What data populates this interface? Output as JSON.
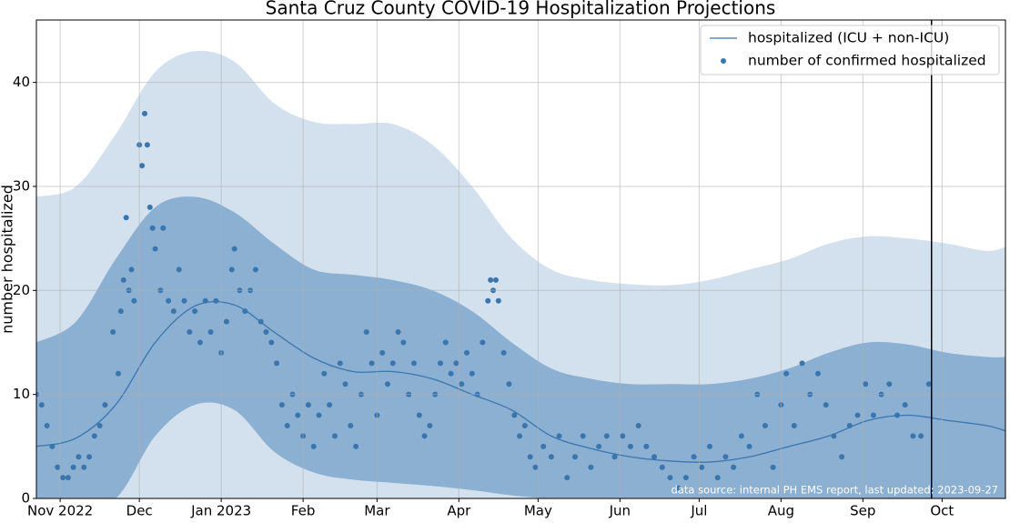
{
  "chart_data": {
    "type": "line",
    "title": "Santa Cruz County COVID-19 Hospitalization Projections",
    "ylabel": "number hospitalized",
    "annotation": "data source: internal PH EMS report, last updated: 2023-09-27",
    "vline": "2023-09-27",
    "xlim": [
      "2022-10-23",
      "2023-10-25"
    ],
    "xticks": [
      {
        "value": "2022-11-01",
        "label": "Nov 2022"
      },
      {
        "value": "2022-12-01",
        "label": "Dec"
      },
      {
        "value": "2023-01-01",
        "label": "Jan 2023"
      },
      {
        "value": "2023-02-01",
        "label": "Feb"
      },
      {
        "value": "2023-03-01",
        "label": "Mar"
      },
      {
        "value": "2023-04-01",
        "label": "Apr"
      },
      {
        "value": "2023-05-01",
        "label": "May"
      },
      {
        "value": "2023-06-01",
        "label": "Jun"
      },
      {
        "value": "2023-07-01",
        "label": "Jul"
      },
      {
        "value": "2023-08-01",
        "label": "Aug"
      },
      {
        "value": "2023-09-01",
        "label": "Sep"
      },
      {
        "value": "2023-10-01",
        "label": "Oct"
      }
    ],
    "ylim": [
      0,
      46
    ],
    "yticks": [
      0,
      10,
      20,
      30,
      40
    ],
    "grid": true,
    "legend": "upper right",
    "bands": [
      {
        "color": "#d3e0ed",
        "x": [
          "2022-10-23",
          "2022-11-07",
          "2022-11-22",
          "2022-12-07",
          "2022-12-22",
          "2023-01-06",
          "2023-01-21",
          "2023-02-05",
          "2023-02-20",
          "2023-03-07",
          "2023-03-22",
          "2023-04-06",
          "2023-04-21",
          "2023-05-06",
          "2023-05-21",
          "2023-06-05",
          "2023-06-20",
          "2023-07-05",
          "2023-07-20",
          "2023-08-04",
          "2023-08-19",
          "2023-09-03",
          "2023-09-18",
          "2023-10-03",
          "2023-10-18",
          "2023-10-25"
        ],
        "upper": [
          29,
          30,
          35,
          41,
          43,
          42,
          38,
          36.2,
          36,
          36,
          34,
          30,
          25,
          22,
          21,
          20.6,
          20.5,
          21,
          22,
          23,
          24.5,
          25.2,
          25,
          24.5,
          23.8,
          24.2
        ]
      },
      {
        "color": "#8bb0d2",
        "x": [
          "2022-10-23",
          "2022-11-07",
          "2022-11-22",
          "2022-12-07",
          "2022-12-22",
          "2023-01-06",
          "2023-01-21",
          "2023-02-05",
          "2023-02-20",
          "2023-03-07",
          "2023-03-22",
          "2023-04-06",
          "2023-04-21",
          "2023-05-06",
          "2023-05-21",
          "2023-06-05",
          "2023-06-20",
          "2023-07-05",
          "2023-07-20",
          "2023-08-04",
          "2023-08-19",
          "2023-09-03",
          "2023-09-18",
          "2023-10-03",
          "2023-10-18",
          "2023-10-25"
        ],
        "upper": [
          15,
          17,
          23,
          28,
          29,
          27.5,
          24.5,
          22,
          21.5,
          21,
          20,
          18,
          15,
          12.5,
          11.5,
          11,
          11,
          11,
          11.5,
          12.5,
          14,
          15,
          14.8,
          14,
          13.6,
          13.6
        ],
        "lower": [
          0,
          0,
          0,
          6,
          9,
          8.5,
          4.5,
          2.5,
          1.8,
          1.5,
          1.2,
          0.8,
          0.3,
          0,
          0,
          0,
          0,
          0,
          0,
          0,
          0,
          0,
          0,
          0,
          0,
          0
        ]
      }
    ],
    "series": [
      {
        "name": "hospitalized (ICU + non-ICU)",
        "kind": "line",
        "color": "#3a75ae",
        "x": [
          "2022-10-23",
          "2022-11-07",
          "2022-11-22",
          "2022-12-07",
          "2022-12-22",
          "2023-01-06",
          "2023-01-21",
          "2023-02-05",
          "2023-02-20",
          "2023-03-07",
          "2023-03-22",
          "2023-04-06",
          "2023-04-21",
          "2023-05-06",
          "2023-05-21",
          "2023-06-05",
          "2023-06-20",
          "2023-07-05",
          "2023-07-20",
          "2023-08-04",
          "2023-08-19",
          "2023-09-03",
          "2023-09-18",
          "2023-10-03",
          "2023-10-18",
          "2023-10-25"
        ],
        "values": [
          5,
          5.8,
          9,
          15,
          18.5,
          18.6,
          16,
          13.5,
          12.2,
          12.2,
          11.5,
          10,
          8.5,
          6,
          4.8,
          4,
          3.6,
          3.5,
          4,
          5,
          6,
          7.5,
          8,
          7.5,
          7,
          6.5
        ]
      },
      {
        "name": "number of confirmed hospitalized",
        "kind": "scatter",
        "color": "#3a75ae",
        "x": [
          "2022-10-23",
          "2022-10-25",
          "2022-10-27",
          "2022-10-29",
          "2022-10-31",
          "2022-11-02",
          "2022-11-04",
          "2022-11-06",
          "2022-11-08",
          "2022-11-10",
          "2022-11-12",
          "2022-11-14",
          "2022-11-16",
          "2022-11-18",
          "2022-11-21",
          "2022-11-23",
          "2022-11-24",
          "2022-11-25",
          "2022-11-26",
          "2022-11-27",
          "2022-11-28",
          "2022-11-29",
          "2022-12-01",
          "2022-12-02",
          "2022-12-03",
          "2022-12-04",
          "2022-12-05",
          "2022-12-06",
          "2022-12-07",
          "2022-12-09",
          "2022-12-10",
          "2022-12-12",
          "2022-12-14",
          "2022-12-16",
          "2022-12-18",
          "2022-12-20",
          "2022-12-22",
          "2022-12-24",
          "2022-12-26",
          "2022-12-28",
          "2022-12-30",
          "2023-01-01",
          "2023-01-03",
          "2023-01-05",
          "2023-01-06",
          "2023-01-08",
          "2023-01-10",
          "2023-01-12",
          "2023-01-14",
          "2023-01-16",
          "2023-01-18",
          "2023-01-20",
          "2023-01-22",
          "2023-01-24",
          "2023-01-26",
          "2023-01-28",
          "2023-01-30",
          "2023-02-01",
          "2023-02-03",
          "2023-02-05",
          "2023-02-07",
          "2023-02-09",
          "2023-02-11",
          "2023-02-13",
          "2023-02-15",
          "2023-02-17",
          "2023-02-19",
          "2023-02-21",
          "2023-02-23",
          "2023-02-25",
          "2023-02-27",
          "2023-03-01",
          "2023-03-03",
          "2023-03-05",
          "2023-03-07",
          "2023-03-09",
          "2023-03-11",
          "2023-03-13",
          "2023-03-15",
          "2023-03-17",
          "2023-03-19",
          "2023-03-21",
          "2023-03-23",
          "2023-03-25",
          "2023-03-27",
          "2023-03-29",
          "2023-03-31",
          "2023-04-02",
          "2023-04-04",
          "2023-04-06",
          "2023-04-08",
          "2023-04-10",
          "2023-04-12",
          "2023-04-13",
          "2023-04-14",
          "2023-04-15",
          "2023-04-16",
          "2023-04-18",
          "2023-04-20",
          "2023-04-22",
          "2023-04-24",
          "2023-04-26",
          "2023-04-28",
          "2023-04-30",
          "2023-05-03",
          "2023-05-06",
          "2023-05-09",
          "2023-05-12",
          "2023-05-15",
          "2023-05-18",
          "2023-05-21",
          "2023-05-24",
          "2023-05-27",
          "2023-05-30",
          "2023-06-02",
          "2023-06-05",
          "2023-06-08",
          "2023-06-11",
          "2023-06-14",
          "2023-06-17",
          "2023-06-20",
          "2023-06-23",
          "2023-06-26",
          "2023-06-29",
          "2023-07-02",
          "2023-07-05",
          "2023-07-08",
          "2023-07-11",
          "2023-07-14",
          "2023-07-17",
          "2023-07-20",
          "2023-07-23",
          "2023-07-26",
          "2023-07-29",
          "2023-08-01",
          "2023-08-03",
          "2023-08-06",
          "2023-08-09",
          "2023-08-12",
          "2023-08-15",
          "2023-08-18",
          "2023-08-21",
          "2023-08-24",
          "2023-08-27",
          "2023-08-30",
          "2023-09-02",
          "2023-09-05",
          "2023-09-08",
          "2023-09-11",
          "2023-09-14",
          "2023-09-17",
          "2023-09-20",
          "2023-09-23",
          "2023-09-26"
        ],
        "values": [
          10,
          9,
          7,
          5,
          3,
          2,
          2,
          3,
          4,
          3,
          4,
          6,
          7,
          9,
          16,
          12,
          18,
          21,
          27,
          20,
          22,
          19,
          34,
          32,
          37,
          34,
          28,
          26,
          24,
          20,
          26,
          19,
          18,
          22,
          19,
          16,
          18,
          15,
          19,
          16,
          19,
          14,
          17,
          22,
          24,
          20,
          18,
          20,
          22,
          17,
          16,
          15,
          13,
          9,
          7,
          10,
          8,
          6,
          9,
          5,
          8,
          12,
          9,
          6,
          13,
          11,
          7,
          5,
          10,
          16,
          13,
          8,
          14,
          11,
          13,
          16,
          15,
          10,
          13,
          8,
          6,
          7,
          10,
          13,
          15,
          12,
          13,
          11,
          14,
          12,
          10,
          15,
          19,
          21,
          20,
          21,
          19,
          14,
          11,
          8,
          6,
          7,
          4,
          3,
          5,
          4,
          6,
          2,
          4,
          6,
          3,
          5,
          6,
          4,
          6,
          5,
          7,
          5,
          4,
          3,
          2,
          1,
          2,
          4,
          3,
          5,
          2,
          4,
          3,
          6,
          5,
          10,
          7,
          3,
          9,
          12,
          7,
          13,
          10,
          12,
          9,
          6,
          4,
          7,
          8,
          11,
          8,
          10,
          11,
          8,
          9,
          6,
          6,
          11
        ]
      }
    ]
  }
}
